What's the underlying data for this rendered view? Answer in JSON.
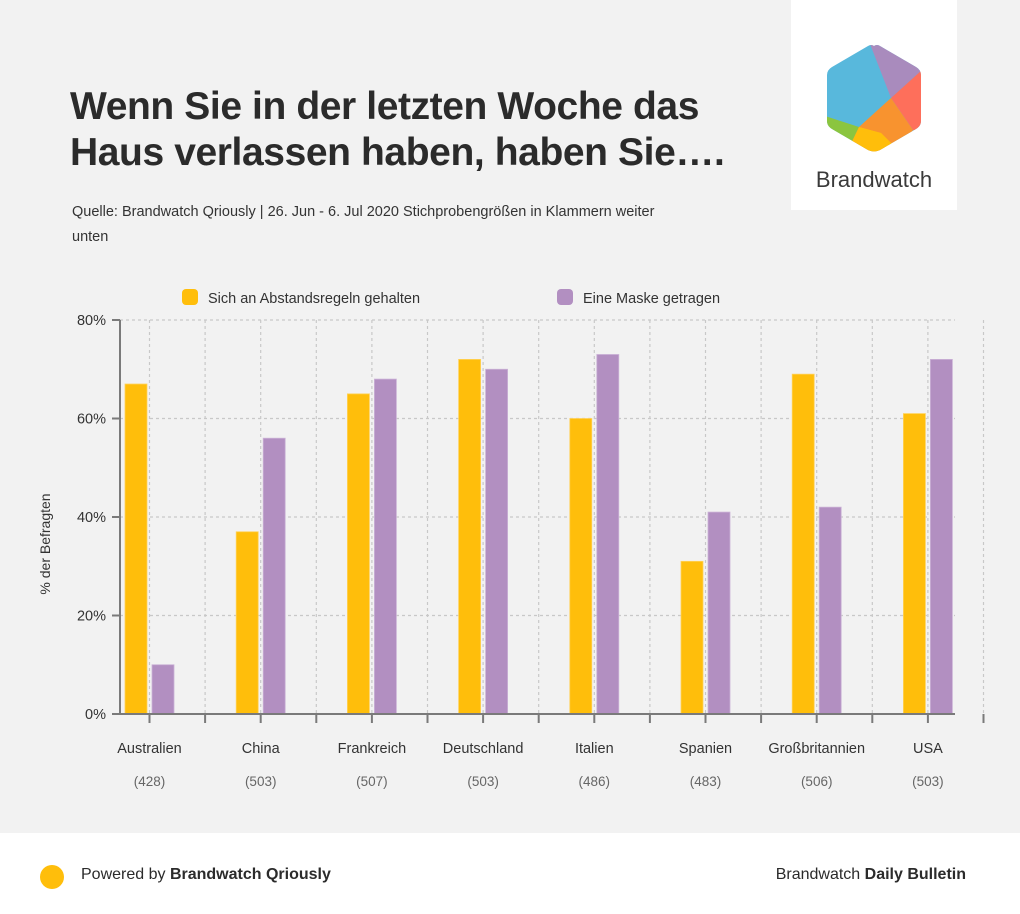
{
  "header": {
    "title": "Wenn Sie in der letzten Woche das Haus verlassen haben, haben Sie….",
    "subtitle": "Quelle: Brandwatch Qriously | 26. Jun - 6. Jul 2020 Stichprobengrößen in Klammern weiter unten"
  },
  "logo": {
    "name": "Brandwatch",
    "icon": "brandwatch-hexagon-logo"
  },
  "footer": {
    "powered_prefix": "Powered by ",
    "powered_brand": "Brandwatch Qriously",
    "right_prefix": "Brandwatch ",
    "right_brand": "Daily Bulletin",
    "dot_color": "#ffbe0b"
  },
  "chart_data": {
    "type": "bar",
    "title": "Wenn Sie in der letzten Woche das Haus verlassen haben, haben Sie….",
    "xlabel": "",
    "ylabel": "% der Befragten",
    "ylim": [
      0,
      80
    ],
    "yticks": [
      0,
      20,
      40,
      60,
      80
    ],
    "ytick_labels": [
      "0%",
      "20%",
      "40%",
      "60%",
      "80%"
    ],
    "grid": true,
    "legend_position": "top-center",
    "categories": [
      "Australien",
      "China",
      "Frankreich",
      "Deutschland",
      "Italien",
      "Spanien",
      "Großbritannien",
      "USA"
    ],
    "sample_sizes": [
      "(428)",
      "(503)",
      "(507)",
      "(503)",
      "(486)",
      "(483)",
      "(506)",
      "(503)"
    ],
    "series": [
      {
        "name": "Sich an Abstandsregeln gehalten",
        "color": "#ffbe0b",
        "values": [
          67,
          37,
          65,
          72,
          60,
          31,
          69,
          61
        ]
      },
      {
        "name": "Eine Maske getragen",
        "color": "#b28fc1",
        "values": [
          10,
          56,
          68,
          70,
          73,
          41,
          42,
          72
        ]
      }
    ]
  }
}
